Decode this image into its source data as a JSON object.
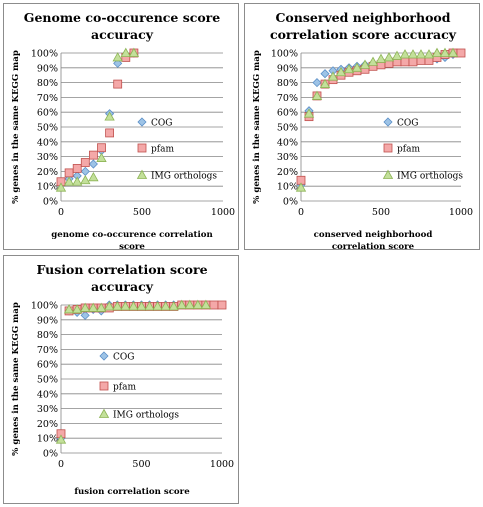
{
  "colors": {
    "COG": "#9dc3e6",
    "COG_stroke": "#5b8fc7",
    "pfam": "#f4a8a8",
    "pfam_stroke": "#c0504d",
    "IMG orthologs": "#c3e09a",
    "IMG orthologs_stroke": "#8db456",
    "grid": "#868686"
  },
  "chart_data": [
    {
      "type": "scatter",
      "title": [
        "Genome co-occurence score",
        "accuracy"
      ],
      "xlabel": [
        "genome co-occurence correlation",
        "score"
      ],
      "ylabel": "% genes in the same KEGG map",
      "xlim": [
        0,
        1000
      ],
      "ylim": [
        0,
        100
      ],
      "xticks": [
        "0",
        "500",
        "1000"
      ],
      "yticks": [
        "0%",
        "10%",
        "20%",
        "30%",
        "40%",
        "50%",
        "60%",
        "70%",
        "80%",
        "90%",
        "100%"
      ],
      "grid": "horizontal",
      "legend": "right",
      "series": [
        {
          "name": "COG",
          "x": [
            0,
            50,
            100,
            150,
            200,
            250,
            300,
            350,
            400,
            450
          ],
          "y": [
            11,
            15,
            17,
            20,
            25,
            34,
            59,
            93,
            99,
            100
          ]
        },
        {
          "name": "pfam",
          "x": [
            0,
            50,
            100,
            150,
            200,
            250,
            300,
            350,
            400,
            450
          ],
          "y": [
            13,
            19,
            22,
            26,
            31,
            36,
            46,
            79,
            97,
            100
          ]
        },
        {
          "name": "IMG orthologs",
          "x": [
            0,
            50,
            100,
            150,
            200,
            250,
            300,
            350,
            400,
            450
          ],
          "y": [
            9,
            13,
            13,
            14,
            16,
            29,
            57,
            97,
            100,
            100
          ]
        }
      ]
    },
    {
      "type": "scatter",
      "title": [
        "Conserved neighborhood",
        "correlation score accuracy"
      ],
      "xlabel": [
        "conserved neighborhood",
        "correlation score"
      ],
      "ylabel": "% genes in the same KEGG map",
      "xlim": [
        0,
        1000
      ],
      "ylim": [
        0,
        100
      ],
      "xticks": [
        "0",
        "500",
        "1000"
      ],
      "yticks": [
        "0%",
        "10%",
        "20%",
        "30%",
        "40%",
        "50%",
        "60%",
        "70%",
        "80%",
        "90%",
        "100%"
      ],
      "grid": "horizontal",
      "legend": "right",
      "series": [
        {
          "name": "COG",
          "x": [
            0,
            50,
            100,
            150,
            200,
            250,
            300,
            350,
            400,
            450,
            500,
            550,
            600,
            650,
            700,
            750,
            800,
            850,
            900,
            950
          ],
          "y": [
            11,
            61,
            80,
            86,
            88,
            89,
            90,
            91,
            92,
            93,
            94,
            94,
            95,
            95,
            95,
            96,
            96,
            96,
            97,
            99
          ]
        },
        {
          "name": "pfam",
          "x": [
            0,
            50,
            100,
            150,
            200,
            250,
            300,
            350,
            400,
            450,
            500,
            550,
            600,
            650,
            700,
            750,
            800,
            850,
            900,
            950,
            1000
          ],
          "y": [
            14,
            57,
            71,
            79,
            82,
            85,
            87,
            88,
            89,
            91,
            92,
            93,
            94,
            94,
            94,
            95,
            95,
            97,
            99,
            100,
            100
          ]
        },
        {
          "name": "IMG orthologs",
          "x": [
            0,
            50,
            100,
            150,
            200,
            250,
            300,
            350,
            400,
            450,
            500,
            550,
            600,
            650,
            700,
            750,
            800,
            850,
            900,
            950
          ],
          "y": [
            9,
            59,
            71,
            79,
            84,
            87,
            89,
            90,
            92,
            94,
            96,
            97,
            98,
            99,
            99,
            99,
            99,
            100,
            100,
            100
          ]
        }
      ]
    },
    {
      "type": "scatter",
      "title": [
        "Fusion correlation score",
        "accuracy"
      ],
      "xlabel": [
        "fusion correlation score"
      ],
      "ylabel": "% genes in the same KEGG map",
      "xlim": [
        0,
        1000
      ],
      "ylim": [
        0,
        100
      ],
      "xticks": [
        "0",
        "500",
        "1000"
      ],
      "yticks": [
        "0%",
        "10%",
        "20%",
        "30%",
        "40%",
        "50%",
        "60%",
        "70%",
        "80%",
        "90%",
        "100%"
      ],
      "grid": "horizontal",
      "legend": "right",
      "series": [
        {
          "name": "COG",
          "x": [
            0,
            50,
            100,
            150,
            200,
            250,
            300,
            350,
            400,
            450,
            500,
            550,
            600,
            650,
            700
          ],
          "y": [
            10,
            96,
            95,
            93,
            97,
            96,
            100,
            100,
            100,
            100,
            100,
            100,
            100,
            100,
            100
          ]
        },
        {
          "name": "pfam",
          "x": [
            0,
            50,
            100,
            150,
            200,
            250,
            300,
            350,
            400,
            450,
            500,
            550,
            600,
            650,
            700,
            750,
            800,
            850,
            900,
            950,
            1000
          ],
          "y": [
            13,
            96,
            97,
            98,
            98,
            98,
            98,
            99,
            99,
            99,
            99,
            99,
            99,
            99,
            99,
            100,
            100,
            100,
            100,
            100,
            100
          ]
        },
        {
          "name": "IMG orthologs",
          "x": [
            0,
            50,
            100,
            150,
            200,
            250,
            300,
            350,
            400,
            450,
            500,
            550,
            600,
            650,
            700,
            750,
            800,
            850,
            900
          ],
          "y": [
            9,
            97,
            97,
            98,
            98,
            98,
            99,
            99,
            99,
            99,
            99,
            99,
            99,
            99,
            99,
            100,
            100,
            100,
            100
          ]
        }
      ]
    }
  ]
}
